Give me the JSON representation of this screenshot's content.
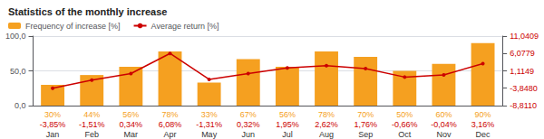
{
  "chart_data": {
    "type": "bar",
    "title": "Statistics of the monthly increase",
    "categories": [
      "Jan",
      "Feb",
      "Mar",
      "Apr",
      "May",
      "Jun",
      "Jul",
      "Aug",
      "Sep",
      "Oct",
      "Nov",
      "Dec"
    ],
    "series": [
      {
        "name": "Frequency of increase [%]",
        "type": "bar",
        "color": "#F5A020",
        "values": [
          30,
          44,
          56,
          78,
          33,
          67,
          56,
          78,
          70,
          50,
          60,
          90
        ],
        "value_labels": [
          "30%",
          "44%",
          "56%",
          "78%",
          "33%",
          "67%",
          "56%",
          "78%",
          "70%",
          "50%",
          "60%",
          "90%"
        ]
      },
      {
        "name": "Average return [%]",
        "type": "line",
        "axis": "y2",
        "color": "#CC0000",
        "marker": "circle",
        "values": [
          -3.85,
          -1.51,
          0.34,
          6.08,
          -1.31,
          0.32,
          1.95,
          2.62,
          1.76,
          -0.66,
          -0.04,
          3.16
        ],
        "value_labels": [
          "-3,85%",
          "-1,51%",
          "0,34%",
          "6,08%",
          "-1,31%",
          "0,32%",
          "1,95%",
          "2,62%",
          "1,76%",
          "-0,66%",
          "-0,04%",
          "3,16%"
        ]
      }
    ],
    "ylim": [
      0,
      100
    ],
    "yticks": [
      {
        "value": 0,
        "label": "0,0"
      },
      {
        "value": 50,
        "label": "50,0"
      },
      {
        "value": 100,
        "label": "100,0"
      }
    ],
    "y2lim": [
      -8.811,
      11.0409
    ],
    "y2ticks": [
      {
        "value": -8.811,
        "label": "-8,8110"
      },
      {
        "value": -3.848,
        "label": "-3,8480"
      },
      {
        "value": 1.1149,
        "label": "1,1149"
      },
      {
        "value": 6.0779,
        "label": "6,0779"
      },
      {
        "value": 11.0409,
        "label": "11,0409"
      }
    ],
    "grid": true,
    "legend": "top-left",
    "data_labels": true
  }
}
